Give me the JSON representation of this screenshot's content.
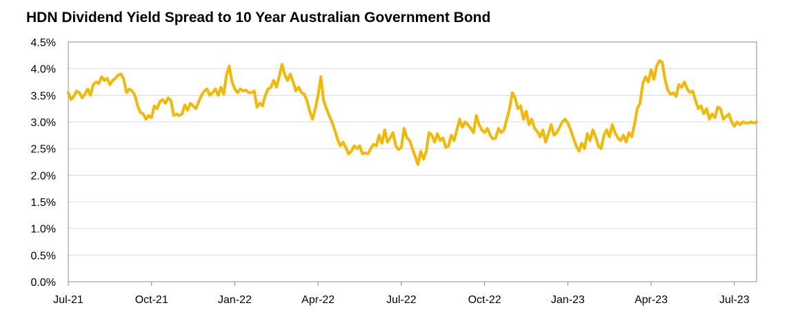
{
  "chart_data": {
    "type": "line",
    "title": "HDN Dividend Yield Spread to 10 Year Australian Government Bond",
    "xlabel": "",
    "ylabel": "",
    "ylim": [
      0,
      4.5
    ],
    "y_ticks": [
      "0.0%",
      "0.5%",
      "1.0%",
      "1.5%",
      "2.0%",
      "2.5%",
      "3.0%",
      "3.5%",
      "4.0%",
      "4.5%"
    ],
    "x_ticks": [
      "Jul-21",
      "Oct-21",
      "Jan-22",
      "Apr-22",
      "Jul-22",
      "Oct-22",
      "Jan-23",
      "Apr-23",
      "Jul-23"
    ],
    "x_range_months": [
      0,
      24.8
    ],
    "grid": true,
    "line_color": "#F5B800",
    "series": [
      {
        "name": "HDN Dividend Yield Spread",
        "points": [
          [
            0.0,
            3.55
          ],
          [
            0.1,
            3.42
          ],
          [
            0.2,
            3.48
          ],
          [
            0.3,
            3.58
          ],
          [
            0.4,
            3.55
          ],
          [
            0.5,
            3.45
          ],
          [
            0.6,
            3.52
          ],
          [
            0.7,
            3.62
          ],
          [
            0.8,
            3.5
          ],
          [
            0.9,
            3.7
          ],
          [
            1.0,
            3.75
          ],
          [
            1.1,
            3.72
          ],
          [
            1.2,
            3.85
          ],
          [
            1.3,
            3.78
          ],
          [
            1.4,
            3.82
          ],
          [
            1.5,
            3.7
          ],
          [
            1.6,
            3.78
          ],
          [
            1.7,
            3.82
          ],
          [
            1.8,
            3.88
          ],
          [
            1.9,
            3.9
          ],
          [
            2.0,
            3.8
          ],
          [
            2.1,
            3.55
          ],
          [
            2.2,
            3.62
          ],
          [
            2.3,
            3.58
          ],
          [
            2.4,
            3.5
          ],
          [
            2.5,
            3.3
          ],
          [
            2.6,
            3.18
          ],
          [
            2.7,
            3.15
          ],
          [
            2.8,
            3.05
          ],
          [
            2.9,
            3.12
          ],
          [
            3.0,
            3.08
          ],
          [
            3.1,
            3.3
          ],
          [
            3.2,
            3.25
          ],
          [
            3.3,
            3.38
          ],
          [
            3.4,
            3.42
          ],
          [
            3.5,
            3.35
          ],
          [
            3.6,
            3.45
          ],
          [
            3.7,
            3.4
          ],
          [
            3.8,
            3.12
          ],
          [
            3.9,
            3.15
          ],
          [
            4.0,
            3.12
          ],
          [
            4.1,
            3.15
          ],
          [
            4.2,
            3.32
          ],
          [
            4.3,
            3.22
          ],
          [
            4.4,
            3.35
          ],
          [
            4.5,
            3.3
          ],
          [
            4.6,
            3.25
          ],
          [
            4.7,
            3.38
          ],
          [
            4.8,
            3.5
          ],
          [
            4.9,
            3.58
          ],
          [
            5.0,
            3.62
          ],
          [
            5.1,
            3.5
          ],
          [
            5.2,
            3.55
          ],
          [
            5.3,
            3.62
          ],
          [
            5.4,
            3.5
          ],
          [
            5.5,
            3.65
          ],
          [
            5.6,
            3.52
          ],
          [
            5.7,
            3.88
          ],
          [
            5.8,
            4.05
          ],
          [
            5.9,
            3.75
          ],
          [
            6.0,
            3.62
          ],
          [
            6.1,
            3.55
          ],
          [
            6.2,
            3.62
          ],
          [
            6.3,
            3.58
          ],
          [
            6.4,
            3.6
          ],
          [
            6.5,
            3.55
          ],
          [
            6.6,
            3.55
          ],
          [
            6.7,
            3.58
          ],
          [
            6.8,
            3.28
          ],
          [
            6.9,
            3.35
          ],
          [
            7.0,
            3.3
          ],
          [
            7.1,
            3.5
          ],
          [
            7.2,
            3.62
          ],
          [
            7.3,
            3.65
          ],
          [
            7.4,
            3.78
          ],
          [
            7.5,
            3.65
          ],
          [
            7.6,
            3.85
          ],
          [
            7.7,
            4.08
          ],
          [
            7.8,
            3.88
          ],
          [
            7.9,
            3.78
          ],
          [
            8.0,
            3.9
          ],
          [
            8.1,
            3.75
          ],
          [
            8.2,
            3.58
          ],
          [
            8.3,
            3.65
          ],
          [
            8.4,
            3.55
          ],
          [
            8.5,
            3.52
          ],
          [
            8.6,
            3.4
          ],
          [
            8.7,
            3.2
          ],
          [
            8.8,
            3.05
          ],
          [
            8.9,
            3.25
          ],
          [
            9.0,
            3.5
          ],
          [
            9.1,
            3.85
          ],
          [
            9.2,
            3.4
          ],
          [
            9.3,
            3.25
          ],
          [
            9.4,
            3.12
          ],
          [
            9.5,
            3.0
          ],
          [
            9.6,
            2.85
          ],
          [
            9.7,
            2.68
          ],
          [
            9.8,
            2.55
          ],
          [
            9.9,
            2.62
          ],
          [
            10.0,
            2.52
          ],
          [
            10.1,
            2.4
          ],
          [
            10.2,
            2.45
          ],
          [
            10.3,
            2.55
          ],
          [
            10.4,
            2.5
          ],
          [
            10.5,
            2.55
          ],
          [
            10.6,
            2.4
          ],
          [
            10.7,
            2.42
          ],
          [
            10.8,
            2.4
          ],
          [
            10.9,
            2.5
          ],
          [
            11.0,
            2.58
          ],
          [
            11.1,
            2.55
          ],
          [
            11.2,
            2.75
          ],
          [
            11.3,
            2.6
          ],
          [
            11.4,
            2.85
          ],
          [
            11.5,
            2.62
          ],
          [
            11.6,
            2.7
          ],
          [
            11.7,
            2.8
          ],
          [
            11.8,
            2.55
          ],
          [
            11.9,
            2.48
          ],
          [
            12.0,
            2.52
          ],
          [
            12.1,
            2.88
          ],
          [
            12.2,
            2.7
          ],
          [
            12.3,
            2.65
          ],
          [
            12.4,
            2.5
          ],
          [
            12.5,
            2.35
          ],
          [
            12.6,
            2.2
          ],
          [
            12.7,
            2.45
          ],
          [
            12.8,
            2.3
          ],
          [
            12.9,
            2.45
          ],
          [
            13.0,
            2.8
          ],
          [
            13.1,
            2.75
          ],
          [
            13.2,
            2.62
          ],
          [
            13.3,
            2.78
          ],
          [
            13.4,
            2.65
          ],
          [
            13.5,
            2.7
          ],
          [
            13.6,
            2.52
          ],
          [
            13.7,
            2.55
          ],
          [
            13.8,
            2.75
          ],
          [
            13.9,
            2.65
          ],
          [
            14.0,
            2.85
          ],
          [
            14.1,
            3.05
          ],
          [
            14.2,
            2.9
          ],
          [
            14.3,
            3.0
          ],
          [
            14.4,
            2.95
          ],
          [
            14.5,
            2.88
          ],
          [
            14.6,
            2.8
          ],
          [
            14.7,
            3.12
          ],
          [
            14.8,
            2.95
          ],
          [
            14.9,
            2.85
          ],
          [
            15.0,
            2.8
          ],
          [
            15.1,
            2.88
          ],
          [
            15.2,
            2.75
          ],
          [
            15.3,
            2.68
          ],
          [
            15.4,
            2.7
          ],
          [
            15.5,
            2.88
          ],
          [
            15.6,
            2.8
          ],
          [
            15.7,
            2.85
          ],
          [
            15.8,
            3.05
          ],
          [
            15.9,
            3.25
          ],
          [
            16.0,
            3.55
          ],
          [
            16.1,
            3.45
          ],
          [
            16.2,
            3.25
          ],
          [
            16.3,
            3.3
          ],
          [
            16.4,
            3.05
          ],
          [
            16.5,
            3.2
          ],
          [
            16.6,
            2.95
          ],
          [
            16.7,
            3.05
          ],
          [
            16.8,
            2.88
          ],
          [
            16.9,
            2.82
          ],
          [
            17.0,
            2.72
          ],
          [
            17.1,
            2.85
          ],
          [
            17.2,
            2.62
          ],
          [
            17.3,
            2.78
          ],
          [
            17.4,
            2.95
          ],
          [
            17.5,
            2.75
          ],
          [
            17.6,
            2.8
          ],
          [
            17.7,
            2.9
          ],
          [
            17.8,
            3.0
          ],
          [
            17.9,
            3.05
          ],
          [
            18.0,
            2.98
          ],
          [
            18.1,
            2.85
          ],
          [
            18.2,
            2.7
          ],
          [
            18.3,
            2.55
          ],
          [
            18.4,
            2.45
          ],
          [
            18.5,
            2.6
          ],
          [
            18.6,
            2.5
          ],
          [
            18.7,
            2.78
          ],
          [
            18.8,
            2.65
          ],
          [
            18.9,
            2.85
          ],
          [
            19.0,
            2.72
          ],
          [
            19.1,
            2.55
          ],
          [
            19.2,
            2.5
          ],
          [
            19.3,
            2.75
          ],
          [
            19.4,
            2.85
          ],
          [
            19.5,
            2.72
          ],
          [
            19.6,
            2.95
          ],
          [
            19.7,
            2.8
          ],
          [
            19.8,
            2.7
          ],
          [
            19.9,
            2.65
          ],
          [
            20.0,
            2.75
          ],
          [
            20.1,
            2.62
          ],
          [
            20.2,
            2.8
          ],
          [
            20.3,
            2.72
          ],
          [
            20.4,
            2.95
          ],
          [
            20.5,
            3.25
          ],
          [
            20.6,
            3.35
          ],
          [
            20.7,
            3.72
          ],
          [
            20.8,
            3.85
          ],
          [
            20.9,
            3.75
          ],
          [
            21.0,
            3.98
          ],
          [
            21.1,
            3.8
          ],
          [
            21.2,
            4.05
          ],
          [
            21.3,
            4.15
          ],
          [
            21.4,
            4.12
          ],
          [
            21.5,
            3.8
          ],
          [
            21.6,
            3.6
          ],
          [
            21.7,
            3.52
          ],
          [
            21.8,
            3.55
          ],
          [
            21.9,
            3.48
          ],
          [
            22.0,
            3.7
          ],
          [
            22.1,
            3.65
          ],
          [
            22.2,
            3.75
          ],
          [
            22.3,
            3.62
          ],
          [
            22.4,
            3.55
          ],
          [
            22.5,
            3.58
          ],
          [
            22.6,
            3.4
          ],
          [
            22.7,
            3.25
          ],
          [
            22.8,
            3.3
          ],
          [
            22.9,
            3.15
          ],
          [
            23.0,
            3.25
          ],
          [
            23.1,
            3.05
          ],
          [
            23.2,
            3.15
          ],
          [
            23.3,
            3.08
          ],
          [
            23.4,
            3.28
          ],
          [
            23.5,
            3.25
          ],
          [
            23.6,
            3.05
          ],
          [
            23.7,
            3.1
          ],
          [
            23.8,
            3.15
          ],
          [
            23.9,
            3.0
          ],
          [
            24.0,
            2.92
          ],
          [
            24.1,
            3.0
          ],
          [
            24.2,
            2.95
          ],
          [
            24.3,
            3.0
          ],
          [
            24.4,
            2.98
          ],
          [
            24.5,
            2.98
          ],
          [
            24.6,
            3.0
          ],
          [
            24.7,
            2.98
          ],
          [
            24.8,
            3.0
          ]
        ]
      }
    ]
  }
}
